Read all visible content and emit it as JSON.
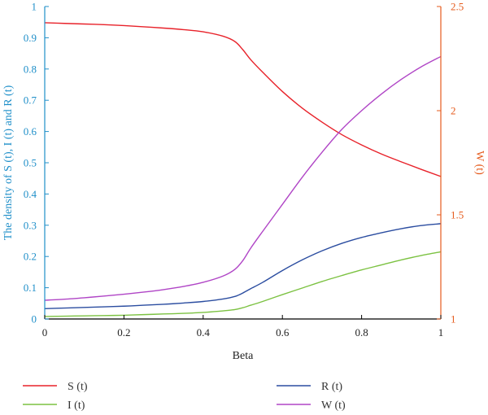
{
  "chart_data": {
    "type": "line",
    "xlabel": "Beta",
    "ylabel_left": "The density of S (t), I (t) and R (t)",
    "ylabel_right": "W (t)",
    "xlim": [
      0,
      1
    ],
    "ylim_left": [
      0,
      1
    ],
    "ylim_right": [
      1,
      2.5
    ],
    "x_ticks": [
      "0",
      "0.2",
      "0.4",
      "0.6",
      "0.8",
      "1"
    ],
    "y_left_ticks": [
      "0",
      "0.1",
      "0.2",
      "0.3",
      "0.4",
      "0.5",
      "0.6",
      "0.7",
      "0.8",
      "0.9",
      "1"
    ],
    "y_right_ticks": [
      "1",
      "1.5",
      "2",
      "2.5"
    ],
    "grid": false,
    "legend_position": "bottom",
    "x": [
      0,
      0.05,
      0.1,
      0.15,
      0.2,
      0.25,
      0.3,
      0.35,
      0.4,
      0.45,
      0.48,
      0.5,
      0.52,
      0.55,
      0.6,
      0.65,
      0.7,
      0.75,
      0.8,
      0.85,
      0.9,
      0.95,
      1
    ],
    "series": [
      {
        "name": "S (t)",
        "axis": "left",
        "color": "#e8222a",
        "values": [
          0.948,
          0.946,
          0.944,
          0.942,
          0.939,
          0.935,
          0.931,
          0.926,
          0.919,
          0.905,
          0.888,
          0.862,
          0.83,
          0.79,
          0.728,
          0.675,
          0.63,
          0.59,
          0.557,
          0.528,
          0.503,
          0.479,
          0.456
        ]
      },
      {
        "name": "I (t)",
        "axis": "left",
        "color": "#7cc242",
        "values": [
          0.008,
          0.009,
          0.01,
          0.011,
          0.012,
          0.014,
          0.016,
          0.018,
          0.021,
          0.026,
          0.03,
          0.036,
          0.044,
          0.056,
          0.078,
          0.099,
          0.12,
          0.139,
          0.157,
          0.173,
          0.189,
          0.203,
          0.215
        ]
      },
      {
        "name": "R (t)",
        "axis": "left",
        "color": "#2b4da0",
        "values": [
          0.033,
          0.035,
          0.037,
          0.039,
          0.041,
          0.044,
          0.047,
          0.051,
          0.056,
          0.064,
          0.072,
          0.083,
          0.097,
          0.117,
          0.155,
          0.189,
          0.218,
          0.242,
          0.261,
          0.276,
          0.289,
          0.299,
          0.305
        ]
      },
      {
        "name": "W (t)",
        "axis": "right",
        "color": "#b045c6",
        "values": [
          1.09,
          1.095,
          1.102,
          1.11,
          1.119,
          1.129,
          1.141,
          1.156,
          1.176,
          1.206,
          1.238,
          1.28,
          1.34,
          1.42,
          1.55,
          1.68,
          1.8,
          1.91,
          2.0,
          2.08,
          2.15,
          2.21,
          2.26
        ]
      }
    ],
    "colors": {
      "left_axis": "#1f8fc9",
      "right_axis": "#e55b1d",
      "bottom_axis": "#000000"
    }
  }
}
